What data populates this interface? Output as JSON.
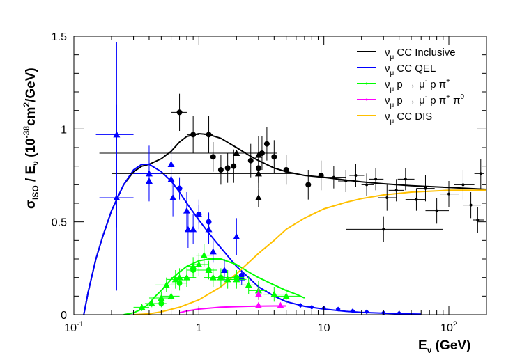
{
  "chart_data": {
    "type": "scatter",
    "title": "",
    "xlabel": {
      "main": "E",
      "sub": "ν",
      "unit": " (GeV)"
    },
    "ylabel": {
      "sigma": "σ",
      "iso": "ISO",
      "slash": " / E",
      "nu": "ν",
      "open": " (10",
      "exp": "-38",
      "unit": "cm",
      "two": "2",
      "close": "/GeV)"
    },
    "x_scale": "log",
    "xlim": [
      0.1,
      200
    ],
    "ylim": [
      0,
      1.5
    ],
    "x_ticks": [
      {
        "value": 0.1,
        "base": "10",
        "exp": "-1"
      },
      {
        "value": 1,
        "label": "1"
      },
      {
        "value": 10,
        "label": "10"
      },
      {
        "value": 100,
        "base": "10",
        "exp": "2"
      }
    ],
    "y_ticks": [
      {
        "value": 0,
        "label": "0"
      },
      {
        "value": 0.5,
        "label": "0.5"
      },
      {
        "value": 1,
        "label": "1"
      },
      {
        "value": 1.5,
        "label": "1.5"
      }
    ],
    "legend": {
      "placement": "top-right",
      "entries": [
        {
          "color": "#000000",
          "label": "ν",
          "sub": "μ",
          "rest": " CC Inclusive"
        },
        {
          "color": "#0000ff",
          "label": "ν",
          "sub": "μ",
          "rest": " CC QEL"
        },
        {
          "color": "#00ff00",
          "label": "ν",
          "sub": "μ",
          "rest": " p → μ",
          "sup1": "-",
          "rest2": " p π",
          "sup2": "+"
        },
        {
          "color": "#ff00ff",
          "label": "ν",
          "sub": "μ",
          "rest": " p → μ",
          "sup1": "-",
          "rest2": " p π",
          "sup2": "+",
          "rest3": " π",
          "sup3": "0"
        },
        {
          "color": "#ffc000",
          "label": "ν",
          "sub": "μ",
          "rest": " CC DIS"
        }
      ]
    },
    "series": [
      {
        "name": "ν_μ CC Inclusive",
        "kind": "curve",
        "color": "#000000",
        "x": [
          0.12,
          0.13,
          0.15,
          0.17,
          0.2,
          0.25,
          0.3,
          0.35,
          0.4,
          0.5,
          0.6,
          0.7,
          0.8,
          1.0,
          1.2,
          1.5,
          2.0,
          2.5,
          3.0,
          4.0,
          5.0,
          7.0,
          10,
          15,
          20,
          30,
          50,
          100,
          200
        ],
        "y": [
          0.0,
          0.12,
          0.3,
          0.42,
          0.56,
          0.7,
          0.77,
          0.8,
          0.81,
          0.84,
          0.88,
          0.93,
          0.96,
          0.975,
          0.97,
          0.95,
          0.9,
          0.86,
          0.83,
          0.79,
          0.77,
          0.75,
          0.74,
          0.725,
          0.715,
          0.705,
          0.695,
          0.685,
          0.675
        ]
      },
      {
        "name": "ν_μ CC QEL",
        "kind": "curve",
        "color": "#0000ff",
        "x": [
          0.12,
          0.13,
          0.15,
          0.17,
          0.2,
          0.25,
          0.3,
          0.35,
          0.4,
          0.5,
          0.6,
          0.7,
          0.8,
          1.0,
          1.2,
          1.5,
          2.0,
          2.5,
          3.0,
          4.0,
          5.0,
          7.0,
          10,
          15,
          20,
          30,
          40,
          60
        ],
        "y": [
          0.0,
          0.12,
          0.3,
          0.42,
          0.56,
          0.7,
          0.78,
          0.81,
          0.81,
          0.77,
          0.72,
          0.66,
          0.6,
          0.51,
          0.44,
          0.36,
          0.26,
          0.2,
          0.15,
          0.1,
          0.07,
          0.045,
          0.03,
          0.018,
          0.012,
          0.008,
          0.005,
          0.003
        ]
      },
      {
        "name": "ν_μ p → μ⁻ p π⁺",
        "kind": "curve",
        "color": "#00ff00",
        "x": [
          0.25,
          0.3,
          0.35,
          0.4,
          0.45,
          0.5,
          0.6,
          0.7,
          0.8,
          1.0,
          1.2,
          1.5,
          2.0,
          2.5,
          3.0,
          4.0,
          5.0,
          6.0,
          7.0
        ],
        "y": [
          0.0,
          0.01,
          0.03,
          0.06,
          0.1,
          0.13,
          0.19,
          0.23,
          0.26,
          0.29,
          0.3,
          0.3,
          0.27,
          0.23,
          0.2,
          0.16,
          0.13,
          0.11,
          0.09
        ]
      },
      {
        "name": "ν_μ p → μ⁻ p π⁺ π⁰",
        "kind": "curve",
        "color": "#ff00ff",
        "x": [
          0.7,
          0.8,
          1.0,
          1.2,
          1.5,
          2.0,
          2.5,
          3.0,
          4.0,
          5.0
        ],
        "y": [
          0.01,
          0.02,
          0.03,
          0.035,
          0.04,
          0.043,
          0.045,
          0.046,
          0.047,
          0.047
        ]
      },
      {
        "name": "ν_μ CC DIS",
        "kind": "curve",
        "color": "#ffc000",
        "x": [
          0.3,
          0.4,
          0.5,
          0.7,
          1.0,
          1.5,
          2.0,
          3.0,
          4.0,
          5.0,
          7.0,
          10,
          15,
          20,
          30,
          50,
          100,
          200
        ],
        "y": [
          0.0,
          0.005,
          0.015,
          0.04,
          0.08,
          0.15,
          0.22,
          0.33,
          0.4,
          0.46,
          0.52,
          0.57,
          0.605,
          0.625,
          0.645,
          0.66,
          0.67,
          0.67
        ]
      },
      {
        "name": "",
        "kind": "points",
        "marker": "circle",
        "color": "#000000",
        "points": [
          {
            "x": 0.7,
            "y": 1.09,
            "yerr": 0.1,
            "xerr": [
              0.1,
              0.1
            ]
          },
          {
            "x": 0.9,
            "y": 0.97,
            "yerr": 0.1,
            "xerr": [
              0.1,
              0.1
            ]
          },
          {
            "x": 1.2,
            "y": 0.97,
            "yerr": 0.1,
            "xerr": [
              0.1,
              0.1
            ]
          },
          {
            "x": 1.3,
            "y": 0.85,
            "yerr": 0.08
          },
          {
            "x": 1.5,
            "y": 0.78,
            "yerr": 0.08
          },
          {
            "x": 1.7,
            "y": 0.79,
            "yerr": 0.08
          },
          {
            "x": 1.9,
            "y": 0.8,
            "yerr": 0.09
          },
          {
            "x": 2.6,
            "y": 0.83,
            "yerr": 0.09
          },
          {
            "x": 3.0,
            "y": 0.79,
            "yerr": 0.08
          },
          {
            "x": 3.2,
            "y": 0.87,
            "yerr": 0.09
          },
          {
            "x": 3.5,
            "y": 0.92,
            "yerr": 0.09
          },
          {
            "x": 4.0,
            "y": 0.85,
            "yerr": 0.09
          },
          {
            "x": 5.0,
            "y": 0.78,
            "yerr": 0.08
          },
          {
            "x": 7.5,
            "y": 0.7,
            "yerr": 0.08
          },
          {
            "x": 9.5,
            "y": 0.75,
            "yerr": 0.08
          }
        ]
      },
      {
        "name": "",
        "kind": "points",
        "marker": "triangle",
        "color": "#000000",
        "points": [
          {
            "x": 2.0,
            "y": 0.87,
            "yerr": 0.0,
            "xerr": [
              1.84,
              2.2
            ]
          },
          {
            "x": 3.0,
            "y": 0.76,
            "yerr": 0.08,
            "xerr": [
              2.8,
              3.0
            ]
          },
          {
            "x": 3.0,
            "y": 0.86,
            "yerr": 0.1
          },
          {
            "x": 3.0,
            "y": 0.63,
            "yerr": 0.05
          }
        ]
      },
      {
        "name": "",
        "kind": "points",
        "marker": "dot",
        "color": "#000000",
        "points": [
          {
            "x": 12,
            "y": 0.74,
            "yerr": 0.06,
            "xerr": [
              2,
              3
            ]
          },
          {
            "x": 15,
            "y": 0.72,
            "yerr": 0.06,
            "xerr": [
              2,
              3
            ]
          },
          {
            "x": 18,
            "y": 0.75,
            "yerr": 0.06,
            "xerr": [
              2,
              3
            ]
          },
          {
            "x": 22,
            "y": 0.7,
            "yerr": 0.06,
            "xerr": [
              2,
              3
            ]
          },
          {
            "x": 26,
            "y": 0.73,
            "yerr": 0.06,
            "xerr": [
              3,
              4
            ]
          },
          {
            "x": 30,
            "y": 0.46,
            "yerr": 0.07,
            "xerr": [
              15,
              60
            ]
          },
          {
            "x": 32,
            "y": 0.63,
            "yerr": 0.07,
            "xerr": [
              5,
              6
            ]
          },
          {
            "x": 38,
            "y": 0.67,
            "yerr": 0.06,
            "xerr": [
              5,
              6
            ]
          },
          {
            "x": 45,
            "y": 0.73,
            "yerr": 0.06,
            "xerr": [
              6,
              8
            ]
          },
          {
            "x": 55,
            "y": 0.62,
            "yerr": 0.06,
            "xerr": [
              10,
              10
            ]
          },
          {
            "x": 65,
            "y": 0.68,
            "yerr": 0.07,
            "xerr": [
              10,
              12
            ]
          },
          {
            "x": 80,
            "y": 0.56,
            "yerr": 0.07,
            "xerr": [
              15,
              20
            ]
          },
          {
            "x": 100,
            "y": 0.65,
            "yerr": 0.07,
            "xerr": [
              15,
              20
            ]
          },
          {
            "x": 130,
            "y": 0.7,
            "yerr": 0.08,
            "xerr": [
              20,
              30
            ]
          },
          {
            "x": 150,
            "y": 0.59,
            "yerr": 0.07,
            "xerr": [
              20,
              30
            ]
          },
          {
            "x": 170,
            "y": 0.51,
            "yerr": 0.07,
            "xerr": [
              15,
              20
            ]
          },
          {
            "x": 180,
            "y": 0.76,
            "yerr": 0.08,
            "xerr": [
              20,
              10
            ]
          }
        ]
      },
      {
        "name": "",
        "kind": "points",
        "marker": "triangle",
        "color": "#0000ff",
        "points": [
          {
            "x": 0.22,
            "y": 0.97,
            "yerr": 0.5,
            "xerr": [
              0.07,
              0.08
            ]
          },
          {
            "x": 0.22,
            "y": 0.63,
            "yerr": 0.5,
            "xerr": [
              0.06,
              0.08
            ]
          },
          {
            "x": 0.4,
            "y": 0.76,
            "yerr": 0.15,
            "xerr": [
              0.1,
              0.1
            ]
          },
          {
            "x": 0.4,
            "y": 0.72,
            "yerr": 0.1
          },
          {
            "x": 0.6,
            "y": 0.81,
            "yerr": 0.12
          },
          {
            "x": 0.6,
            "y": 0.73,
            "yerr": 0.1
          },
          {
            "x": 0.62,
            "y": 0.63,
            "yerr": 0.1
          },
          {
            "x": 0.8,
            "y": 0.56,
            "yerr": 0.1
          },
          {
            "x": 0.82,
            "y": 0.46,
            "yerr": 0.1
          },
          {
            "x": 0.9,
            "y": 0.46,
            "yerr": 0.08
          },
          {
            "x": 1.0,
            "y": 0.54,
            "yerr": 0.08
          },
          {
            "x": 1.2,
            "y": 0.46,
            "yerr": 0.08
          },
          {
            "x": 1.3,
            "y": 0.34,
            "yerr": 0.06
          },
          {
            "x": 1.6,
            "y": 0.24,
            "yerr": 0.06
          },
          {
            "x": 2.0,
            "y": 0.42,
            "yerr": 0.1
          },
          {
            "x": 2.2,
            "y": 0.2,
            "yerr": 0.04
          }
        ]
      },
      {
        "name": "",
        "kind": "points",
        "marker": "circle",
        "color": "#0000ff",
        "points": [
          {
            "x": 0.7,
            "y": 0.68,
            "yerr": 0.06
          },
          {
            "x": 1.0,
            "y": 0.54,
            "yerr": 0.05
          },
          {
            "x": 1.2,
            "y": 0.5,
            "yerr": 0.05
          },
          {
            "x": 2.2,
            "y": 0.21,
            "yerr": 0.02
          }
        ]
      },
      {
        "name": "",
        "kind": "points",
        "marker": "diamond",
        "color": "#0000ff",
        "points": [
          {
            "x": 6.5,
            "y": 0.05
          },
          {
            "x": 8,
            "y": 0.04
          },
          {
            "x": 10,
            "y": 0.035
          },
          {
            "x": 13,
            "y": 0.03
          },
          {
            "x": 17,
            "y": 0.02
          },
          {
            "x": 22,
            "y": 0.015
          },
          {
            "x": 30,
            "y": 0.01
          },
          {
            "x": 40,
            "y": 0.008
          }
        ]
      },
      {
        "name": "",
        "kind": "points",
        "marker": "triangle",
        "color": "#00ff00",
        "points": [
          {
            "x": 0.35,
            "y": 0.04,
            "yerr": 0.02,
            "xerr": [
              0.05,
              0.05
            ]
          },
          {
            "x": 0.42,
            "y": 0.06,
            "yerr": 0.02,
            "xerr": [
              0.05,
              0.05
            ]
          },
          {
            "x": 0.5,
            "y": 0.09,
            "yerr": 0.03,
            "xerr": [
              0.1,
              0.1
            ]
          },
          {
            "x": 0.55,
            "y": 0.16,
            "yerr": 0.04,
            "xerr": [
              0.1,
              0.1
            ]
          },
          {
            "x": 0.6,
            "y": 0.1,
            "yerr": 0.03,
            "xerr": [
              0.1,
              0.1
            ]
          },
          {
            "x": 0.65,
            "y": 0.19,
            "yerr": 0.05,
            "xerr": [
              0.1,
              0.1
            ]
          },
          {
            "x": 0.7,
            "y": 0.2,
            "yerr": 0.05,
            "xerr": [
              0.1,
              0.1
            ]
          },
          {
            "x": 0.8,
            "y": 0.2,
            "yerr": 0.05,
            "xerr": [
              0.1,
              0.15
            ]
          },
          {
            "x": 0.9,
            "y": 0.26,
            "yerr": 0.05,
            "xerr": [
              0.1,
              0.15
            ]
          },
          {
            "x": 1.0,
            "y": 0.27,
            "yerr": 0.06,
            "xerr": [
              0.15,
              0.2
            ]
          },
          {
            "x": 1.1,
            "y": 0.32,
            "yerr": 0.06,
            "xerr": [
              0.15,
              0.2
            ]
          },
          {
            "x": 1.2,
            "y": 0.24,
            "yerr": 0.05,
            "xerr": [
              0.2,
              0.2
            ]
          },
          {
            "x": 1.3,
            "y": 0.2,
            "yerr": 0.05,
            "xerr": [
              0.2,
              0.2
            ]
          },
          {
            "x": 1.5,
            "y": 0.2,
            "yerr": 0.05,
            "xerr": [
              0.2,
              0.3
            ]
          },
          {
            "x": 1.7,
            "y": 0.19,
            "yerr": 0.05,
            "xerr": [
              0.3,
              0.3
            ]
          },
          {
            "x": 2.0,
            "y": 0.19,
            "yerr": 0.05,
            "xerr": [
              0.3,
              0.4
            ]
          },
          {
            "x": 2.5,
            "y": 0.16,
            "yerr": 0.05,
            "xerr": [
              0.4,
              0.5
            ]
          },
          {
            "x": 3.0,
            "y": 0.13,
            "yerr": 0.05,
            "xerr": [
              0.5,
              0.5
            ]
          },
          {
            "x": 4.0,
            "y": 0.11,
            "yerr": 0.04,
            "xerr": [
              0.7,
              1.0
            ]
          },
          {
            "x": 5.0,
            "y": 0.1,
            "yerr": 0.04,
            "xerr": [
              1.0,
              1.5
            ]
          }
        ]
      },
      {
        "name": "",
        "kind": "points",
        "marker": "circle",
        "color": "#00ff00",
        "points": [
          {
            "x": 0.5,
            "y": 0.06,
            "yerr": 0.02,
            "xerr": [
              0.05,
              0.05
            ]
          },
          {
            "x": 0.7,
            "y": 0.17,
            "yerr": 0.04,
            "xerr": [
              0.1,
              0.1
            ]
          },
          {
            "x": 0.9,
            "y": 0.24,
            "yerr": 0.04,
            "xerr": [
              0.1,
              0.1
            ]
          },
          {
            "x": 1.2,
            "y": 0.24,
            "yerr": 0.04,
            "xerr": [
              0.15,
              0.15
            ]
          },
          {
            "x": 1.5,
            "y": 0.2,
            "yerr": 0.04,
            "xerr": [
              0.2,
              0.2
            ]
          },
          {
            "x": 2.0,
            "y": 0.2,
            "yerr": 0.04,
            "xerr": [
              0.3,
              0.3
            ]
          }
        ]
      },
      {
        "name": "",
        "kind": "points",
        "marker": "triangle",
        "color": "#ff00ff",
        "points": [
          {
            "x": 3.0,
            "y": 0.11,
            "yerr": 0.03
          },
          {
            "x": 3.0,
            "y": 0.05,
            "yerr": 0.015
          },
          {
            "x": 4.5,
            "y": 0.05,
            "yerr": 0.015
          }
        ]
      }
    ]
  }
}
